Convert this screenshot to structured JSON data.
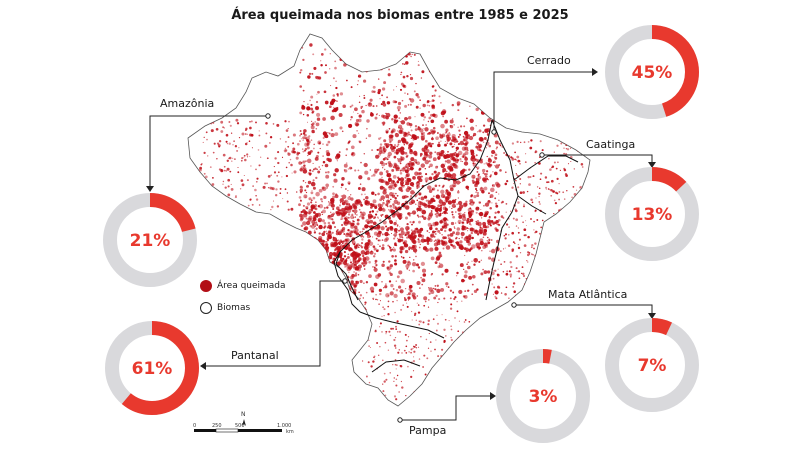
{
  "title": "Área queimada nos biomas entre 1985 e 2025",
  "colors": {
    "burn": "#c0101a",
    "donut_fill": "#e8392e",
    "donut_track": "#d9d9dc",
    "outline": "#111111"
  },
  "legend": {
    "burned_label": "Área queimada",
    "biomes_label": "Biomas"
  },
  "biomes": [
    {
      "id": "amazonia",
      "name": "Amazônia",
      "share": 21,
      "value_label": "21%"
    },
    {
      "id": "cerrado",
      "name": "Cerrado",
      "share": 45,
      "value_label": "45%"
    },
    {
      "id": "caatinga",
      "name": "Caatinga",
      "share": 13,
      "value_label": "13%"
    },
    {
      "id": "mata",
      "name": "Mata Atlântica",
      "share": 7,
      "value_label": "7%"
    },
    {
      "id": "pantanal",
      "name": "Pantanal",
      "share": 61,
      "value_label": "61%"
    },
    {
      "id": "pampa",
      "name": "Pampa",
      "share": 3,
      "value_label": "3%"
    }
  ],
  "scale_bar": {
    "ticks": [
      "0",
      "250",
      "500",
      "1.000"
    ],
    "unit": "km",
    "north": "N"
  }
}
